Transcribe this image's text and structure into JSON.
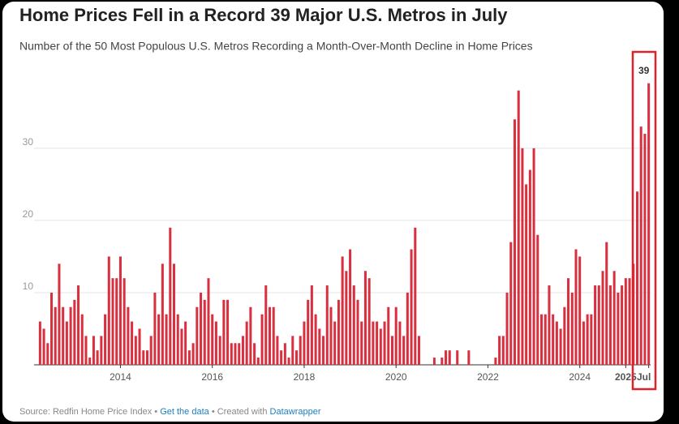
{
  "chart_data": {
    "type": "bar",
    "title": "Home Prices Fell in a Record 39 Major U.S. Metros in July",
    "subtitle": "Number of the 50 Most Populous U.S. Metros Recording a Month-Over-Month Decline in Home Prices",
    "categories": [
      null,
      null,
      null,
      null,
      null,
      null,
      null,
      null,
      null,
      null,
      null,
      null,
      null,
      null,
      null,
      null,
      null,
      null,
      null,
      null,
      null,
      "2014",
      null,
      null,
      null,
      null,
      null,
      null,
      null,
      null,
      null,
      null,
      null,
      null,
      null,
      null,
      null,
      null,
      null,
      null,
      null,
      null,
      null,
      null,
      null,
      "2016",
      null,
      null,
      null,
      null,
      null,
      null,
      null,
      null,
      null,
      null,
      null,
      null,
      null,
      null,
      null,
      null,
      null,
      null,
      null,
      null,
      null,
      null,
      null,
      "2018",
      null,
      null,
      null,
      null,
      null,
      null,
      null,
      null,
      null,
      null,
      null,
      null,
      null,
      null,
      null,
      null,
      null,
      null,
      null,
      null,
      null,
      null,
      null,
      "2020",
      null,
      null,
      null,
      null,
      null,
      null,
      null,
      null,
      null,
      null,
      null,
      null,
      null,
      null,
      null,
      null,
      null,
      null,
      null,
      null,
      null,
      null,
      null,
      "2022",
      null,
      null,
      null,
      null,
      null,
      null,
      null,
      null,
      null,
      null,
      null,
      null,
      null,
      null,
      null,
      null,
      null,
      null,
      null,
      null,
      null,
      null,
      null,
      "2024",
      null,
      null,
      null,
      null,
      null,
      null,
      null,
      null,
      null,
      null,
      null,
      "2025",
      null,
      null,
      null,
      null,
      null,
      "Jul"
    ],
    "values": [
      6,
      5,
      3,
      10,
      8,
      14,
      8,
      6,
      8,
      9,
      11,
      7,
      4,
      1,
      4,
      2,
      4,
      7,
      15,
      12,
      12,
      15,
      12,
      8,
      6,
      4,
      5,
      2,
      2,
      4,
      10,
      7,
      14,
      7,
      19,
      14,
      7,
      5,
      6,
      2,
      3,
      8,
      10,
      9,
      12,
      7,
      6,
      4,
      9,
      9,
      3,
      3,
      3,
      4,
      6,
      8,
      3,
      1,
      7,
      11,
      8,
      8,
      4,
      2,
      3,
      1,
      4,
      2,
      4,
      6,
      9,
      11,
      7,
      5,
      4,
      11,
      8,
      6,
      9,
      15,
      13,
      16,
      11,
      9,
      6,
      13,
      12,
      6,
      6,
      5,
      6,
      8,
      4,
      8,
      6,
      4,
      10,
      16,
      19,
      4,
      0,
      0,
      0,
      1,
      0,
      1,
      2,
      2,
      0,
      2,
      0,
      0,
      2,
      0,
      0,
      0,
      0,
      0,
      0,
      1,
      4,
      4,
      10,
      17,
      34,
      38,
      30,
      25,
      27,
      30,
      18,
      7,
      7,
      11,
      7,
      6,
      5,
      8,
      12,
      10,
      16,
      15,
      6,
      7,
      7,
      11,
      11,
      13,
      17,
      11,
      13,
      10,
      11,
      12,
      12,
      14,
      24,
      33,
      32,
      39
    ],
    "color": "#d9303f",
    "ylim": [
      0,
      42
    ],
    "yticks": [
      10,
      20,
      30
    ],
    "grid": true,
    "footer": {
      "source": "Source: Redfin Home Price Index • ",
      "link1": "Get the data",
      "mid": " • Created with ",
      "link2": "Datawrapper"
    }
  }
}
